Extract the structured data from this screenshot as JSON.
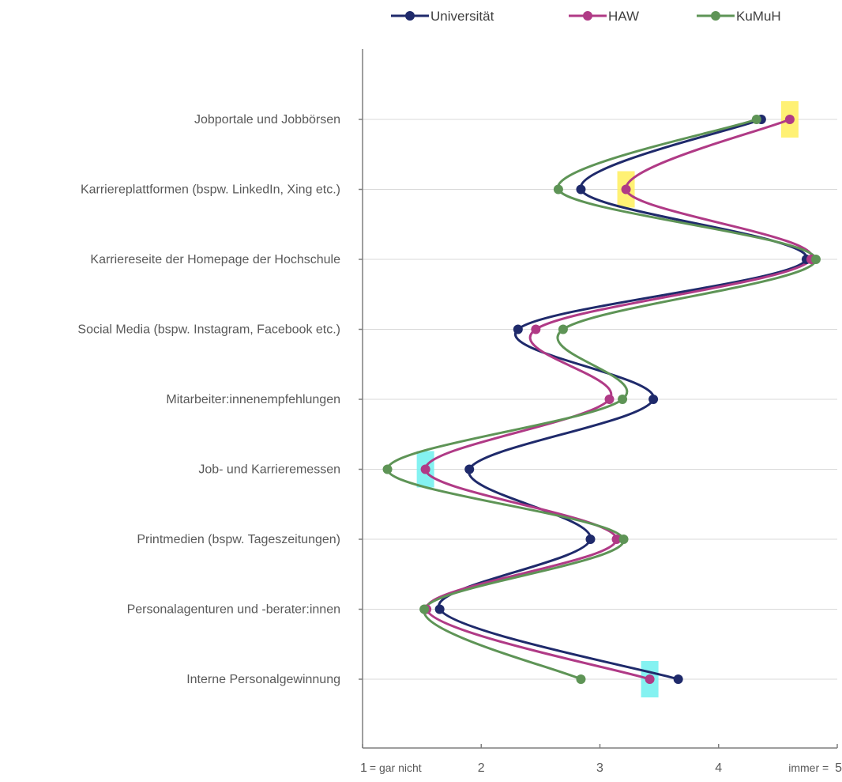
{
  "chart_data": {
    "type": "line",
    "orientation": "horizontal",
    "smooth": true,
    "categories": [
      "Jobportale und Jobbörsen",
      "Karriereplattformen (bspw. LinkedIn, Xing etc.)",
      "Karriereseite der Homepage der Hochschule",
      "Social Media (bspw. Instagram, Facebook etc.)",
      "Mitarbeiter:innenempfehlungen",
      "Job- und Karrieremessen",
      "Printmedien (bspw. Tageszeitungen)",
      "Personalagenturen und -berater:innen",
      "Interne Personalgewinnung"
    ],
    "xlim": [
      1,
      5
    ],
    "xticks": [
      {
        "value": 1,
        "label": "1 = gar nicht"
      },
      {
        "value": 2,
        "label": "2"
      },
      {
        "value": 3,
        "label": "3"
      },
      {
        "value": 4,
        "label": "4"
      },
      {
        "value": 5,
        "label": "immer = 5"
      }
    ],
    "grid": true,
    "legend_position": "top",
    "series": [
      {
        "name": "Universität",
        "color": "#1f2a6b",
        "values": [
          4.36,
          2.84,
          4.74,
          2.31,
          3.45,
          1.9,
          2.92,
          1.65,
          3.66
        ]
      },
      {
        "name": "HAW",
        "color": "#b03a86",
        "values": [
          4.6,
          3.22,
          4.78,
          2.46,
          3.08,
          1.53,
          3.14,
          1.54,
          3.42
        ]
      },
      {
        "name": "KuMuH",
        "color": "#5e9456",
        "values": [
          4.32,
          2.65,
          4.82,
          2.69,
          3.19,
          1.21,
          3.2,
          1.52,
          2.84
        ]
      }
    ],
    "highlights": [
      {
        "category": "Jobportale und Jobbörsen",
        "series": "HAW",
        "value": 4.6,
        "color": "#ffef5c",
        "meaning": "yellow marker"
      },
      {
        "category": "Karriereplattformen (bspw. LinkedIn, Xing etc.)",
        "series": "HAW",
        "value": 3.22,
        "color": "#ffef5c",
        "meaning": "yellow marker"
      },
      {
        "category": "Job- und Karrieremessen",
        "series": "HAW",
        "value": 1.53,
        "color": "#6ff0ef",
        "meaning": "cyan marker"
      },
      {
        "category": "Interne Personalgewinnung",
        "series": "HAW",
        "value": 3.42,
        "color": "#6ff0ef",
        "meaning": "cyan marker"
      }
    ]
  }
}
